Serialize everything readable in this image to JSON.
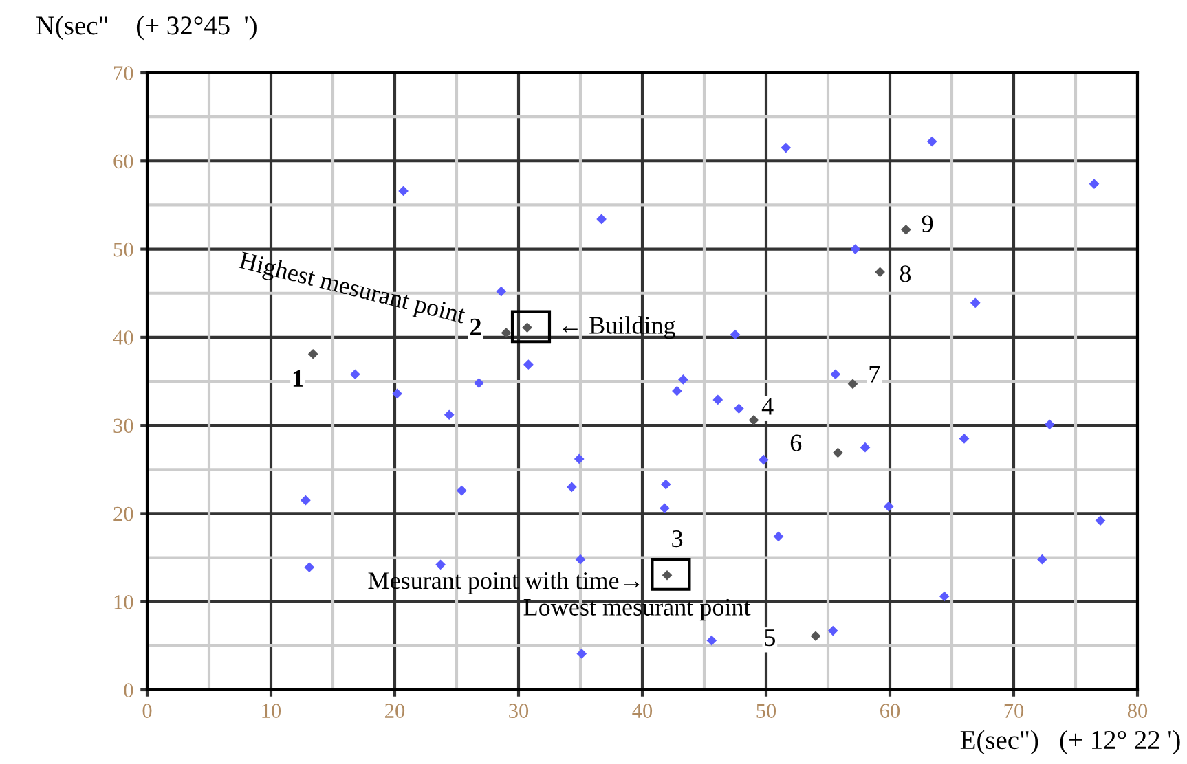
{
  "chart_data": {
    "type": "scatter",
    "xlabel": "E(sec\")   (+ 12° 22 ')",
    "ylabel": "N(sec\"    (+ 32°45  ')",
    "xlim": [
      0,
      80
    ],
    "ylim": [
      0,
      70
    ],
    "xticks": [
      0,
      10,
      20,
      30,
      40,
      50,
      60,
      70,
      80
    ],
    "yticks": [
      0,
      10,
      20,
      30,
      40,
      50,
      60,
      70
    ],
    "grid": true,
    "marker": "diamond",
    "series": [
      {
        "color": "#5a5aff",
        "x": [
          20.7,
          36.7,
          28.6,
          30.8,
          47.5,
          16.8,
          20.2,
          24.4,
          26.8,
          12.8,
          25.4,
          34.9,
          34.3,
          13.1,
          23.7,
          35.0,
          35.1,
          51.6,
          63.4,
          76.5,
          57.2,
          66.9,
          43.3,
          55.6,
          42.8,
          46.1,
          47.8,
          58.0,
          66.0,
          72.9,
          49.8,
          41.9,
          41.8,
          59.9,
          77.0,
          51.0,
          72.3,
          64.4,
          55.4,
          45.6
        ],
        "values": [
          56.6,
          53.4,
          45.2,
          36.9,
          40.3,
          35.8,
          33.6,
          31.2,
          34.8,
          21.5,
          22.6,
          26.2,
          23.0,
          13.9,
          14.2,
          14.8,
          4.1,
          61.5,
          62.2,
          57.4,
          50.0,
          43.9,
          35.2,
          35.8,
          33.9,
          32.9,
          31.9,
          27.5,
          28.5,
          30.1,
          26.1,
          23.3,
          20.6,
          20.8,
          19.2,
          17.4,
          14.8,
          10.6,
          6.7,
          5.6
        ]
      },
      {
        "color": "#555555",
        "x": [
          13.4,
          29.0,
          30.7,
          42.0,
          49.0,
          54.0,
          55.8,
          57.0,
          59.2,
          61.3
        ],
        "values": [
          38.1,
          40.5,
          41.1,
          13.0,
          30.6,
          6.1,
          26.9,
          34.7,
          47.4,
          52.2
        ]
      }
    ],
    "annotations": [
      {
        "text": "1",
        "x": 13.4,
        "y": 38.1
      },
      {
        "text": "2",
        "x": 29.0,
        "y": 40.5
      },
      {
        "text": "3",
        "x": 42.0,
        "y": 13.0
      },
      {
        "text": "4",
        "x": 49.0,
        "y": 30.6
      },
      {
        "text": "5",
        "x": 54.0,
        "y": 6.1
      },
      {
        "text": "6",
        "x": 55.8,
        "y": 26.9
      },
      {
        "text": "7",
        "x": 57.0,
        "y": 34.7
      },
      {
        "text": "8",
        "x": 59.2,
        "y": 47.4
      },
      {
        "text": "9",
        "x": 61.3,
        "y": 52.2
      },
      {
        "text": "← Building",
        "x": 30.7,
        "y": 41.1
      },
      {
        "text": "Mesurant point with time→",
        "x": 42.0,
        "y": 13.0
      },
      {
        "text": "Lowest mesurant point",
        "x": 54.0,
        "y": 6.1
      },
      {
        "text": "Highest mesurant point",
        "x": 29.0,
        "y": 40.5
      }
    ]
  }
}
